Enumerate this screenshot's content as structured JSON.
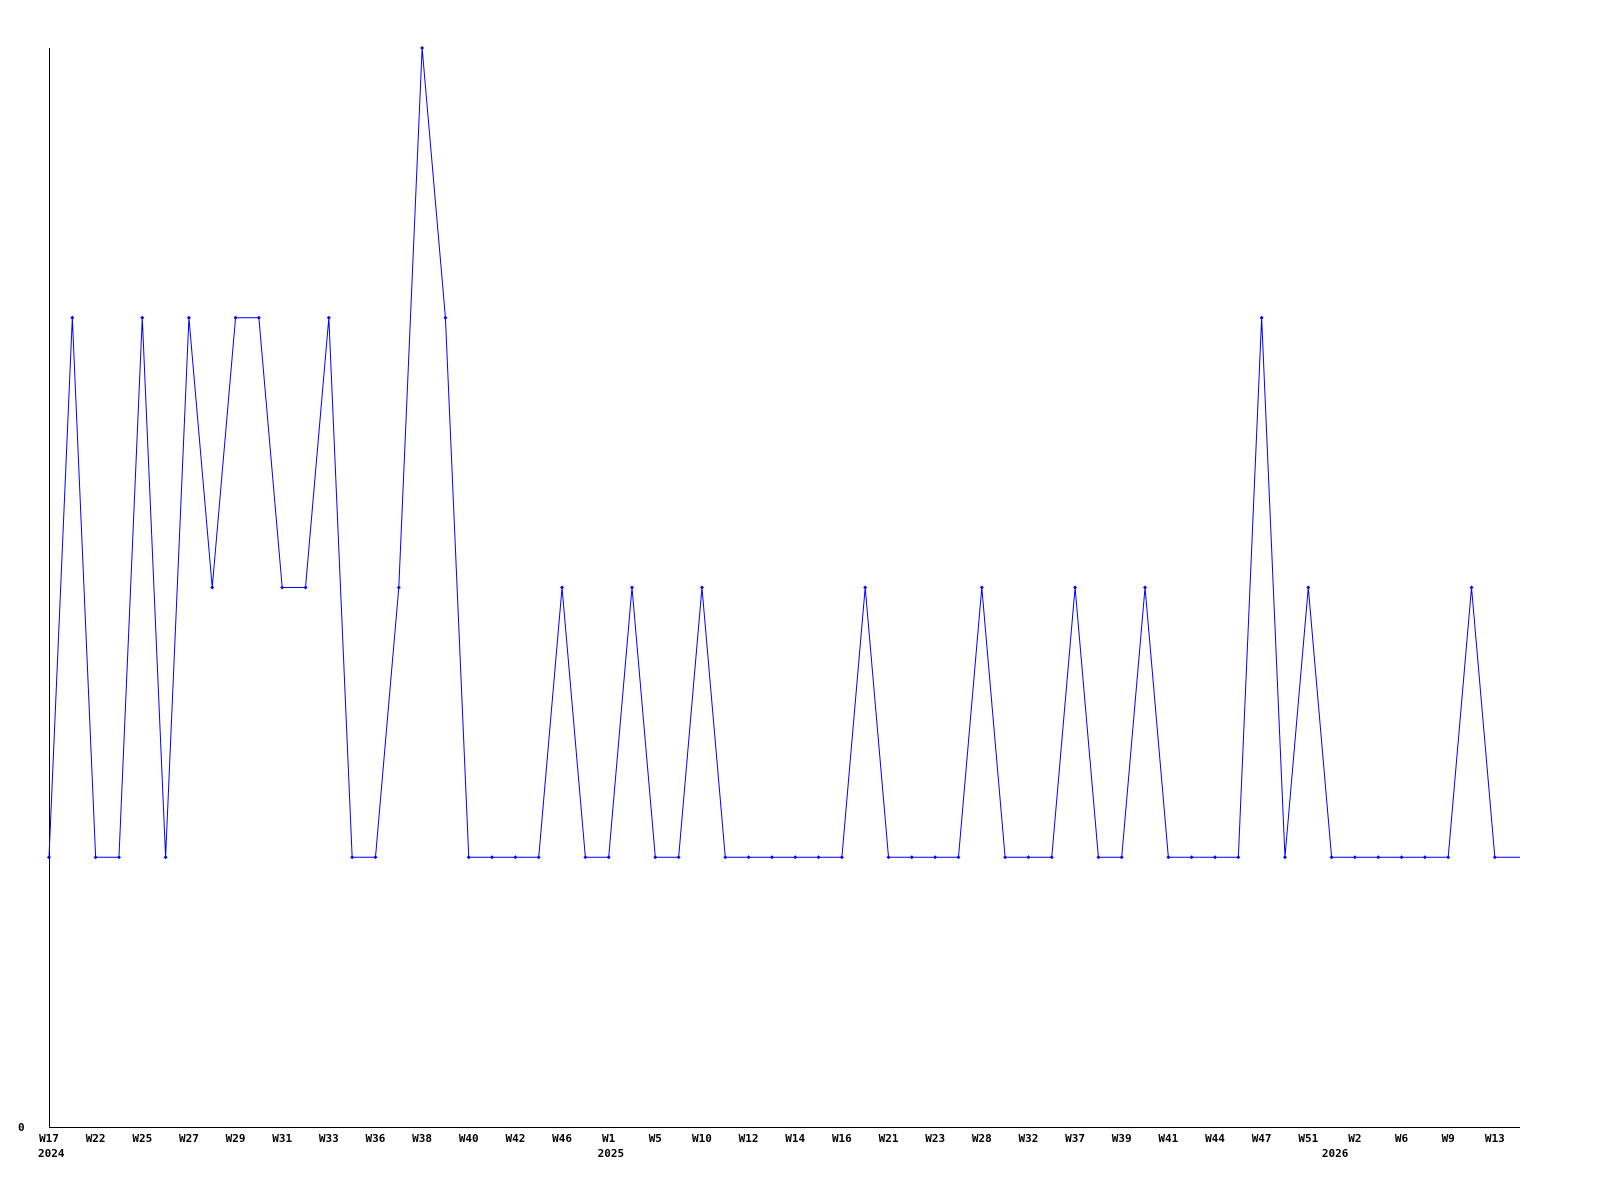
{
  "chart_data": {
    "type": "line",
    "title": "",
    "xlabel": "",
    "ylabel": "",
    "ylim": [
      0,
      4
    ],
    "y_tick_labels": [
      "0"
    ],
    "grid": false,
    "series_color": "#0000ff",
    "values": [
      1,
      3,
      1,
      1,
      3,
      1,
      3,
      2,
      3,
      3,
      2,
      2,
      3,
      1,
      1,
      2,
      4,
      3,
      1,
      1,
      1,
      1,
      2,
      1,
      1,
      2,
      1,
      1,
      2,
      1,
      1,
      1,
      1,
      1,
      1,
      2,
      1,
      1,
      1,
      1,
      2,
      1,
      1,
      1,
      2,
      1,
      1,
      2,
      1,
      1,
      1,
      1,
      3,
      1,
      2,
      1,
      1,
      1,
      1,
      1,
      1,
      2,
      1
    ],
    "x_tick_labels": [
      "W17",
      "W22",
      "W25",
      "W27",
      "W29",
      "W31",
      "W33",
      "W36",
      "W38",
      "W40",
      "W42",
      "W46",
      "W1",
      "W5",
      "W10",
      "W12",
      "W14",
      "W16",
      "W21",
      "W23",
      "W28",
      "W32",
      "W37",
      "W39",
      "W41",
      "W44",
      "W47",
      "W51",
      "W2",
      "W6",
      "W9",
      "W13"
    ],
    "year_labels": [
      {
        "label": "2024",
        "under_tick": "W17"
      },
      {
        "label": "2025",
        "under_tick": "W1"
      },
      {
        "label": "2026",
        "under_tick": "W2"
      }
    ]
  }
}
